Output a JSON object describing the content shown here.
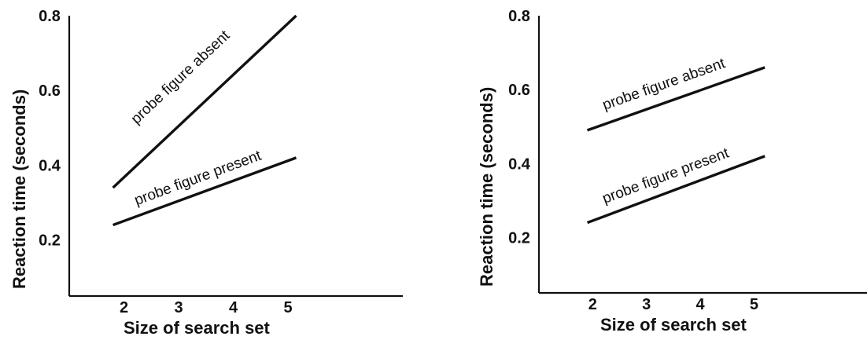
{
  "chart_data": [
    {
      "type": "line",
      "xlabel": "Size of search set",
      "ylabel": "Reaction time (seconds)",
      "xticks": [
        2,
        3,
        4,
        5
      ],
      "yticks": [
        "0.2",
        "0.4",
        "0.6",
        "0.8"
      ],
      "xlim": [
        1,
        7.1
      ],
      "ylim": [
        0.05,
        0.8
      ],
      "series": [
        {
          "name": "probe figure absent",
          "x": [
            1.8,
            5.15
          ],
          "y": [
            0.34,
            0.8
          ]
        },
        {
          "name": "probe figure present",
          "x": [
            1.8,
            5.15
          ],
          "y": [
            0.24,
            0.42
          ]
        }
      ],
      "colors": {
        "line": "#111111",
        "axis": "#111111"
      }
    },
    {
      "type": "line",
      "xlabel": "Size of search set",
      "ylabel": "Reaction time (seconds)",
      "xticks": [
        2,
        3,
        4,
        5
      ],
      "yticks": [
        "0.2",
        "0.4",
        "0.6",
        "0.8"
      ],
      "xlim": [
        1,
        7.1
      ],
      "ylim": [
        0.05,
        0.8
      ],
      "series": [
        {
          "name": "probe figure absent",
          "x": [
            1.9,
            5.2
          ],
          "y": [
            0.49,
            0.66
          ]
        },
        {
          "name": "probe figure present",
          "x": [
            1.9,
            5.2
          ],
          "y": [
            0.24,
            0.42
          ]
        }
      ],
      "colors": {
        "line": "#111111",
        "axis": "#111111"
      }
    }
  ]
}
